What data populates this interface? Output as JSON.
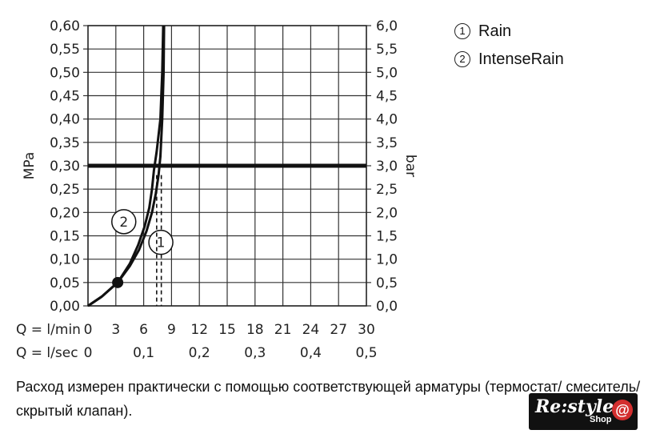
{
  "chart_data": {
    "type": "line",
    "y_left_label": "MPa",
    "y_right_label": "bar",
    "y_left_ticks": [
      "0,00",
      "0,05",
      "0,10",
      "0,15",
      "0,20",
      "0,25",
      "0,30",
      "0,35",
      "0,40",
      "0,45",
      "0,50",
      "0,55",
      "0,60"
    ],
    "y_right_ticks": [
      "0,0",
      "0,5",
      "1,0",
      "1,5",
      "2,0",
      "2,5",
      "3,0",
      "3,5",
      "4,0",
      "4,5",
      "5,0",
      "5,5",
      "6,0"
    ],
    "x_lmin_label": "Q = l/min",
    "x_lmin_ticks": [
      "0",
      "3",
      "6",
      "9",
      "12",
      "15",
      "18",
      "21",
      "24",
      "27",
      "30"
    ],
    "x_lsec_label": "Q = l/sec",
    "x_lsec_ticks": [
      {
        "v": 0,
        "label": "0"
      },
      {
        "v": 6,
        "label": "0,1"
      },
      {
        "v": 12,
        "label": "0,2"
      },
      {
        "v": 18,
        "label": "0,3"
      },
      {
        "v": 24,
        "label": "0,4"
      },
      {
        "v": 30,
        "label": "0,5"
      }
    ],
    "xlim": [
      0,
      30
    ],
    "ylim": [
      0,
      0.6
    ],
    "grid": true,
    "reference_line_mpa": 0.3,
    "marker_point": {
      "x": 3.2,
      "y": 0.05
    },
    "series": [
      {
        "name": "Rain",
        "marker": "1",
        "points": [
          [
            0,
            0
          ],
          [
            1.5,
            0.02
          ],
          [
            3.2,
            0.05
          ],
          [
            4.5,
            0.085
          ],
          [
            5.5,
            0.12
          ],
          [
            6.3,
            0.16
          ],
          [
            6.9,
            0.2
          ],
          [
            7.3,
            0.24
          ],
          [
            7.6,
            0.28
          ],
          [
            7.8,
            0.32
          ],
          [
            8,
            0.4
          ],
          [
            8.15,
            0.5
          ],
          [
            8.2,
            0.6
          ]
        ],
        "dashed_q_lmin": 7.9
      },
      {
        "name": "IntenseRain",
        "marker": "2",
        "points": [
          [
            0,
            0
          ],
          [
            1.5,
            0.02
          ],
          [
            3.2,
            0.05
          ],
          [
            4.5,
            0.09
          ],
          [
            5.4,
            0.13
          ],
          [
            6.1,
            0.17
          ],
          [
            6.6,
            0.21
          ],
          [
            6.9,
            0.25
          ],
          [
            7.1,
            0.29
          ],
          [
            7.4,
            0.33
          ],
          [
            7.8,
            0.4
          ],
          [
            8,
            0.5
          ],
          [
            8.1,
            0.6
          ]
        ],
        "dashed_q_lmin": 7.4
      }
    ]
  },
  "legend": [
    {
      "num": "1",
      "label": "Rain"
    },
    {
      "num": "2",
      "label": "IntenseRain"
    }
  ],
  "caption": "Расход измерен практически с помощью соответствующей арматуры (термостат/ смеситель/скрытый клапан).",
  "logo": {
    "main": "Re:style",
    "sub": "Shop",
    "symbol": "@"
  }
}
